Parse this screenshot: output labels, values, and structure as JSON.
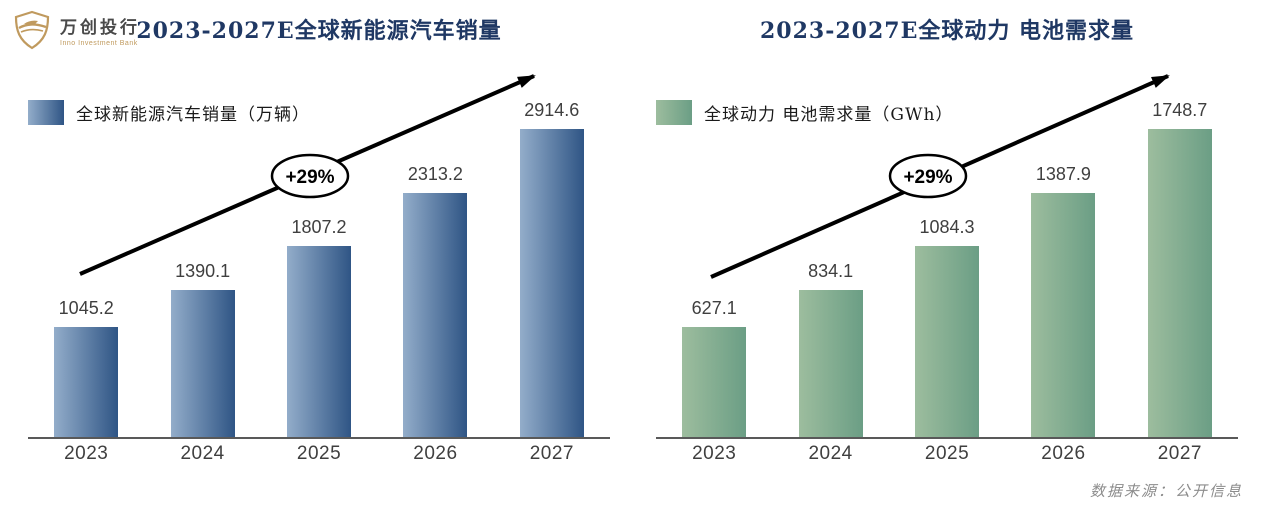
{
  "logo": {
    "name_cn": "万创投行",
    "name_en": "Inno Investment Bank",
    "accent_color": "#c09a5e"
  },
  "page": {
    "source_note": "数据来源：公开信息",
    "title_color": "#1f3864"
  },
  "chart_data": [
    {
      "type": "bar",
      "title": "2023-2027E全球新能源汽车销量",
      "legend": "全球新能源汽车销量（万辆）",
      "unit": "万辆",
      "categories": [
        "2023",
        "2024",
        "2025",
        "2026",
        "2027"
      ],
      "values": [
        1045.2,
        1390.1,
        1807.2,
        2313.2,
        2914.6
      ],
      "annotation": "+29%",
      "bar_color_light": "#93adca",
      "bar_color_dark": "#2f5585",
      "grid": false,
      "legend_position": "top-left",
      "value_labels": true
    },
    {
      "type": "bar",
      "title": "2023-2027E全球动力 电池需求量",
      "legend": "全球动力 电池需求量（GWh）",
      "unit": "GWh",
      "categories": [
        "2023",
        "2024",
        "2025",
        "2026",
        "2027"
      ],
      "values": [
        627.1,
        834.1,
        1084.3,
        1387.9,
        1748.7
      ],
      "annotation": "+29%",
      "bar_color_light": "#9dbd9e",
      "bar_color_dark": "#6b9e85",
      "grid": false,
      "legend_position": "top-left",
      "value_labels": true
    }
  ]
}
